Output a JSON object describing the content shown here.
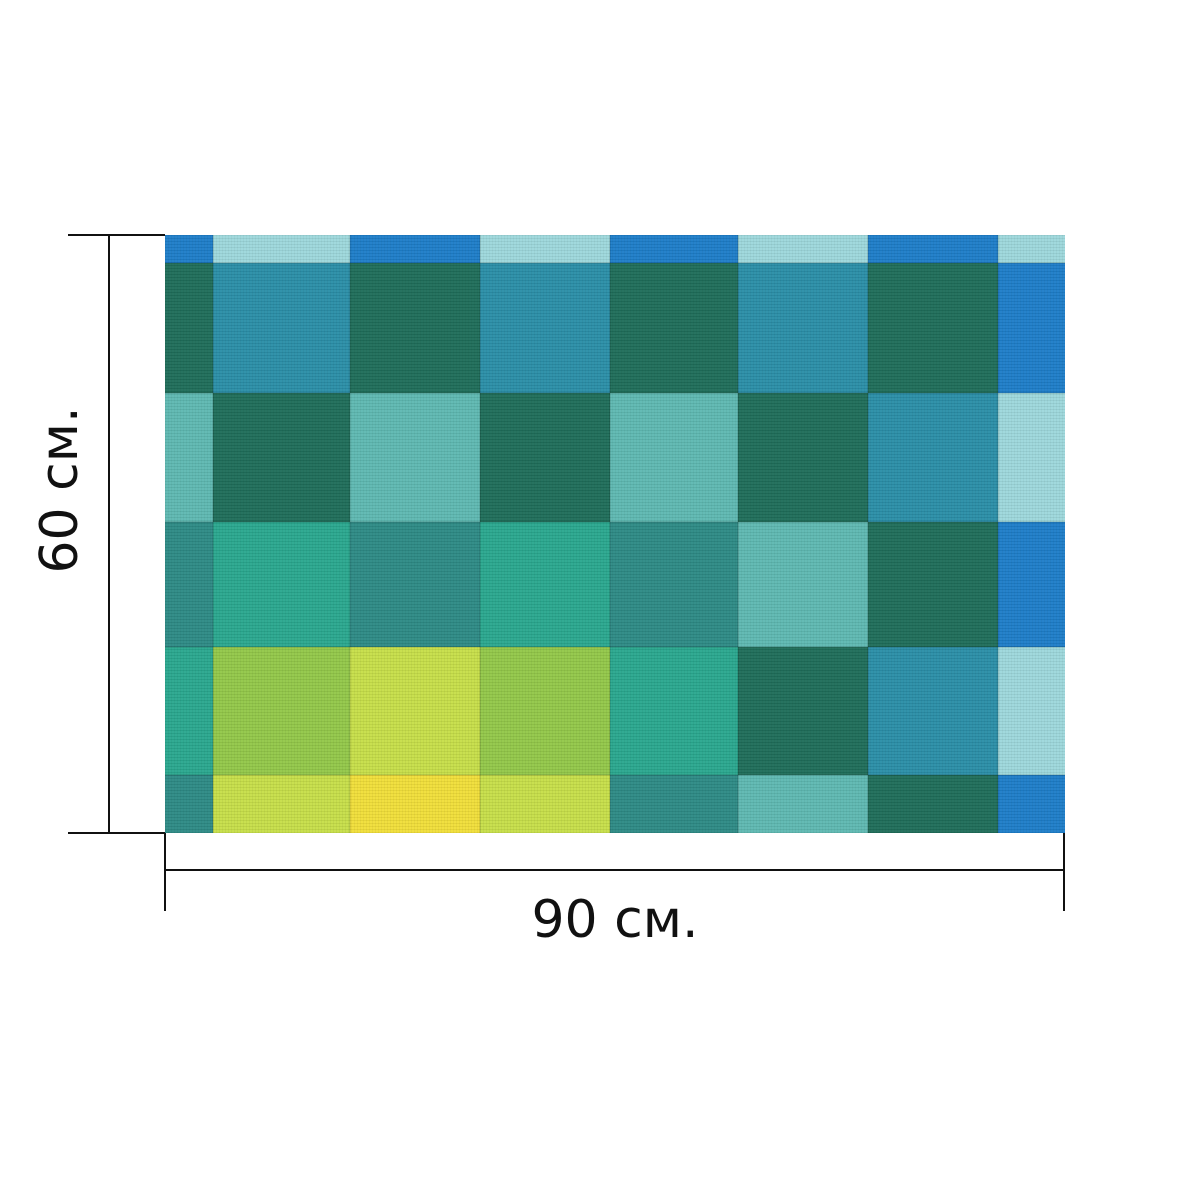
{
  "dimensions": {
    "width_label": "90 см.",
    "height_label": "60 см."
  },
  "palette": {
    "blue": "#1e7ec9",
    "light_cyan": "#9ed8dc",
    "dark_green": "#1f6e5a",
    "teal": "#2b8fa8",
    "mint": "#5fb9b2",
    "mid_teal": "#2e8b86",
    "jade": "#2aa88f",
    "lime": "#93c84a",
    "yellow_green": "#c7df4a",
    "yellow": "#f1df3a",
    "line_color": "#111111"
  },
  "grid": {
    "rows": [
      [
        "blue",
        "light_cyan",
        "blue",
        "light_cyan",
        "blue",
        "light_cyan",
        "blue",
        "light_cyan"
      ],
      [
        "dark_green",
        "teal",
        "dark_green",
        "teal",
        "dark_green",
        "teal",
        "dark_green",
        "blue"
      ],
      [
        "mint",
        "dark_green",
        "mint",
        "dark_green",
        "mint",
        "dark_green",
        "teal",
        "light_cyan"
      ],
      [
        "mid_teal",
        "jade",
        "mid_teal",
        "jade",
        "mid_teal",
        "mint",
        "dark_green",
        "blue"
      ],
      [
        "jade",
        "lime",
        "yellow_green",
        "lime",
        "jade",
        "dark_green",
        "teal",
        "light_cyan"
      ],
      [
        "mid_teal",
        "yellow_green",
        "yellow",
        "yellow_green",
        "mid_teal",
        "mint",
        "dark_green",
        "blue"
      ]
    ]
  }
}
